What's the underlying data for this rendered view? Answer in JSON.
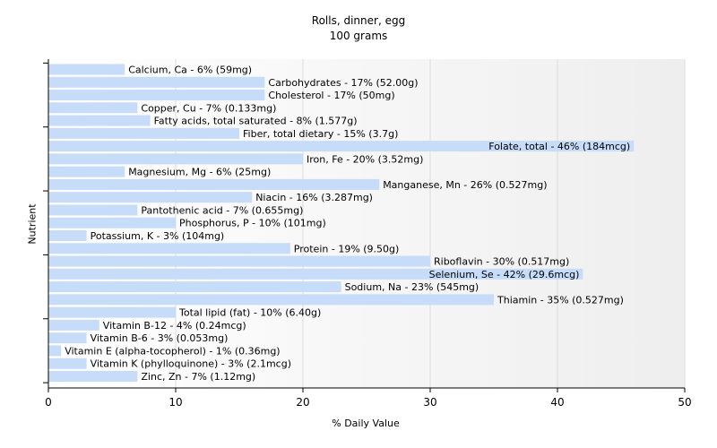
{
  "chart_data": {
    "type": "bar",
    "orientation": "horizontal",
    "title": "Rolls, dinner, egg",
    "subtitle": "100 grams",
    "xlabel": "% Daily Value",
    "ylabel": "Nutrient",
    "xlim": [
      0,
      50
    ],
    "xticks": [
      "0",
      "10",
      "20",
      "30",
      "40",
      "50"
    ],
    "grid": true,
    "bar_color": "#c6dcf8",
    "categories": [
      "Calcium, Ca",
      "Carbohydrates",
      "Cholesterol",
      "Copper, Cu",
      "Fatty acids, total saturated",
      "Fiber, total dietary",
      "Folate, total",
      "Iron, Fe",
      "Magnesium, Mg",
      "Manganese, Mn",
      "Niacin",
      "Pantothenic acid",
      "Phosphorus, P",
      "Potassium, K",
      "Protein",
      "Riboflavin",
      "Selenium, Se",
      "Sodium, Na",
      "Thiamin",
      "Total lipid (fat)",
      "Vitamin B-12",
      "Vitamin B-6",
      "Vitamin E (alpha-tocopherol)",
      "Vitamin K (phylloquinone)",
      "Zinc, Zn"
    ],
    "values": [
      6,
      17,
      17,
      7,
      8,
      15,
      46,
      20,
      6,
      26,
      16,
      7,
      10,
      3,
      19,
      30,
      42,
      23,
      35,
      10,
      4,
      3,
      1,
      3,
      7
    ],
    "labels": [
      "Calcium, Ca - 6% (59mg)",
      "Carbohydrates - 17% (52.00g)",
      "Cholesterol - 17% (50mg)",
      "Copper, Cu - 7% (0.133mg)",
      "Fatty acids, total saturated - 8% (1.577g)",
      "Fiber, total dietary - 15% (3.7g)",
      "Folate, total - 46% (184mcg)",
      "Iron, Fe - 20% (3.52mg)",
      "Magnesium, Mg - 6% (25mg)",
      "Manganese, Mn - 26% (0.527mg)",
      "Niacin - 16% (3.287mg)",
      "Pantothenic acid - 7% (0.655mg)",
      "Phosphorus, P - 10% (101mg)",
      "Potassium, K - 3% (104mg)",
      "Protein - 19% (9.50g)",
      "Riboflavin - 30% (0.517mg)",
      "Selenium, Se - 42% (29.6mcg)",
      "Sodium, Na - 23% (545mg)",
      "Thiamin - 35% (0.527mg)",
      "Total lipid (fat) - 10% (6.40g)",
      "Vitamin B-12 - 4% (0.24mcg)",
      "Vitamin B-6 - 3% (0.053mg)",
      "Vitamin E (alpha-tocopherol) - 1% (0.36mg)",
      "Vitamin K (phylloquinone) - 3% (2.1mcg)",
      "Zinc, Zn - 7% (1.12mg)"
    ]
  }
}
